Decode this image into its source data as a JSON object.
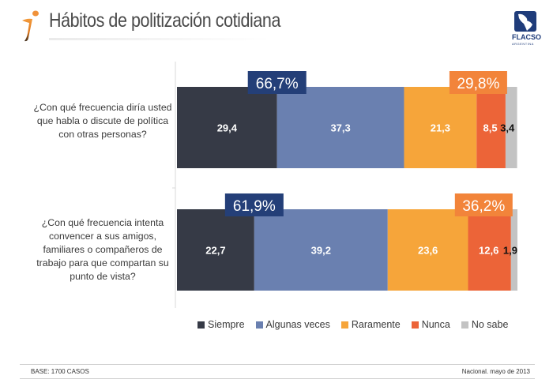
{
  "header": {
    "title": "Hábitos de politización cotidiana",
    "logo_icon": "info-i-icon",
    "brand_name": "FLACSO",
    "brand_sub": "ARGENTINA",
    "brand_icon": "latin-america-map-icon"
  },
  "colors": {
    "siempre": "#363a46",
    "algunas_veces": "#6a80b0",
    "raramente": "#f6a53a",
    "nunca": "#ec6438",
    "no_sabe": "#c3c3c3",
    "group_positive": "#243f78",
    "group_negative": "#f2843a"
  },
  "chart_data": {
    "type": "bar",
    "orientation": "horizontal-stacked-100",
    "title": "Hábitos de politización cotidiana",
    "xlabel": "",
    "ylabel": "",
    "xlim": [
      0,
      100
    ],
    "grid": false,
    "legend_position": "bottom",
    "categories": [
      "¿Con qué frecuencia diría usted que habla o discute de política con otras personas?",
      "¿Con qué frecuencia intenta convencer a sus amigos, familiares o compañeros de trabajo para que compartan su punto de vista?"
    ],
    "series": [
      {
        "name": "Siempre",
        "values": [
          29.4,
          22.7
        ],
        "labels": [
          "29,4",
          "22,7"
        ]
      },
      {
        "name": "Algunas veces",
        "values": [
          37.3,
          39.2
        ],
        "labels": [
          "37,3",
          "39,2"
        ]
      },
      {
        "name": "Raramente",
        "values": [
          21.3,
          23.6
        ],
        "labels": [
          "21,3",
          "23,6"
        ]
      },
      {
        "name": "Nunca",
        "values": [
          8.5,
          12.6
        ],
        "labels": [
          "8,5",
          "12,6"
        ]
      },
      {
        "name": "No sabe",
        "values": [
          3.4,
          1.9
        ],
        "labels": [
          "3,4",
          "1,9"
        ]
      }
    ],
    "annotations": [
      {
        "row": 0,
        "group": "Siempre + Algunas veces",
        "value": 66.7,
        "label": "66,7%"
      },
      {
        "row": 0,
        "group": "Raramente + Nunca",
        "value": 29.8,
        "label": "29,8%"
      },
      {
        "row": 1,
        "group": "Siempre + Algunas veces",
        "value": 61.9,
        "label": "61,9%"
      },
      {
        "row": 1,
        "group": "Raramente + Nunca",
        "value": 36.2,
        "label": "36,2%"
      }
    ]
  },
  "questions": [
    "¿Con qué frecuencia diría usted que habla o discute de política con otras personas?",
    "¿Con qué frecuencia intenta convencer a sus amigos, familiares o compañeros de trabajo para que compartan su punto de vista?"
  ],
  "legend": [
    {
      "label": "Siempre",
      "color": "#363a46"
    },
    {
      "label": "Algunas veces",
      "color": "#6a80b0"
    },
    {
      "label": "Raramente",
      "color": "#f6a53a"
    },
    {
      "label": "Nunca",
      "color": "#ec6438"
    },
    {
      "label": "No sabe",
      "color": "#c3c3c3"
    }
  ],
  "footer": {
    "base": "BASE: 1700 CASOS",
    "source": "Nacional. mayo de 2013"
  }
}
